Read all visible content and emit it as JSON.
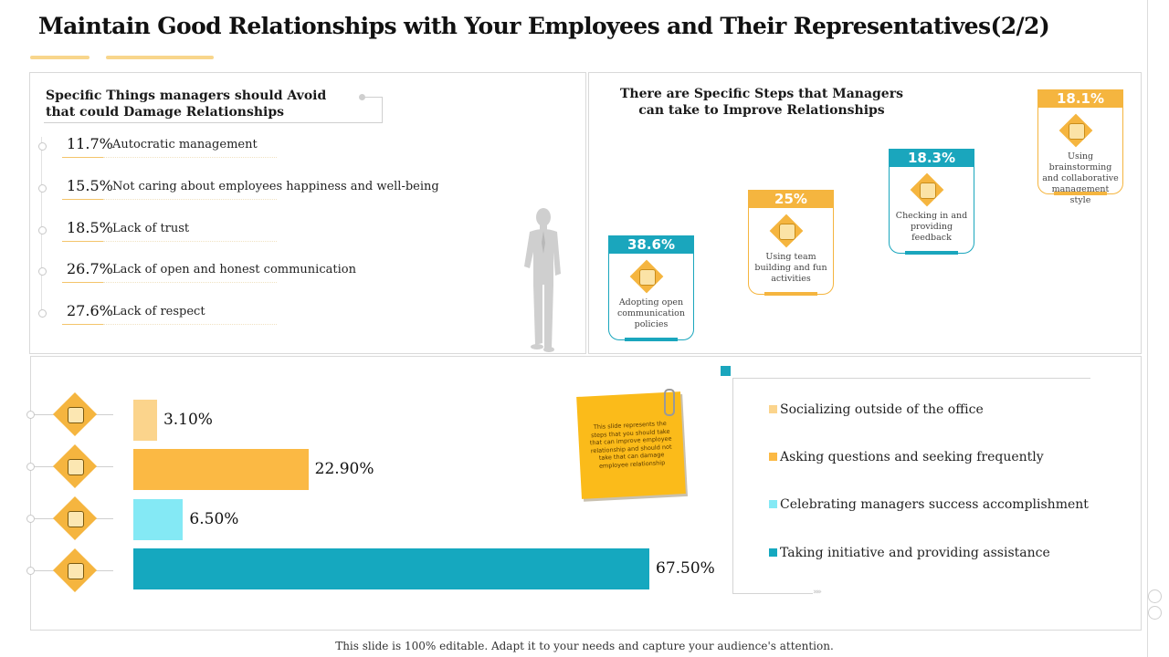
{
  "title": "Maintain Good Relationships with Your Employees and Their Representatives(2/2)",
  "colors": {
    "accent_yellow": "#f5b53f",
    "accent_teal": "#1aa6bd",
    "light_orange": "#fbd48c",
    "light_cyan": "#84e9f5"
  },
  "avoid_section": {
    "heading": "Specific Things managers should Avoid that could Damage Relationships",
    "items": [
      {
        "pct": "11.7%",
        "text": "Autocratic management"
      },
      {
        "pct": "15.5%",
        "text": "Not caring about employees  happiness  and well-being"
      },
      {
        "pct": "18.5%",
        "text": "Lack of trust"
      },
      {
        "pct": "26.7%",
        "text": "Lack of open  and honest  communication"
      },
      {
        "pct": "27.6%",
        "text": "Lack of respect"
      }
    ]
  },
  "steps_section": {
    "heading": "There are Specific Steps that Managers can take to Improve Relationships",
    "steps": [
      {
        "pct": "38.6%",
        "caption": "Adopting open communication policies",
        "icon": "communication-icon",
        "color": "#1aa6bd"
      },
      {
        "pct": "25%",
        "caption": "Using team building and fun activities",
        "icon": "team-building-icon",
        "color": "#f5b53f"
      },
      {
        "pct": "18.3%",
        "caption": "Checking in and providing feedback",
        "icon": "feedback-icon",
        "color": "#1aa6bd"
      },
      {
        "pct": "18.1%",
        "caption": "Using brainstorming and collaborative management style",
        "icon": "brainstorm-icon",
        "color": "#f5b53f"
      }
    ]
  },
  "chart_data": {
    "type": "bar",
    "orientation": "horizontal",
    "categories": [
      "Socializing outside of the office",
      "Asking questions and seeking frequently",
      "Celebrating managers success accomplishment",
      "Taking initiative and providing assistance"
    ],
    "values": [
      3.1,
      22.9,
      6.5,
      67.5
    ],
    "value_labels": [
      "3.10%",
      "22.90%",
      "6.50%",
      "67.50%"
    ],
    "colors": [
      "#fbd48c",
      "#fbb944",
      "#84e9f5",
      "#15a8bf"
    ],
    "icons": [
      "money-hand-icon",
      "growth-chart-icon",
      "gear-people-icon",
      "award-icon"
    ],
    "xlim": [
      0,
      67.5
    ],
    "title": "",
    "xlabel": "",
    "ylabel": ""
  },
  "note": {
    "text": "This slide represents the steps that you should take that can improve employee relationship and should not take that can damage employee relationship"
  },
  "footer": "This slide is 100% editable.  Adapt it to your needs and capture your audience's attention."
}
